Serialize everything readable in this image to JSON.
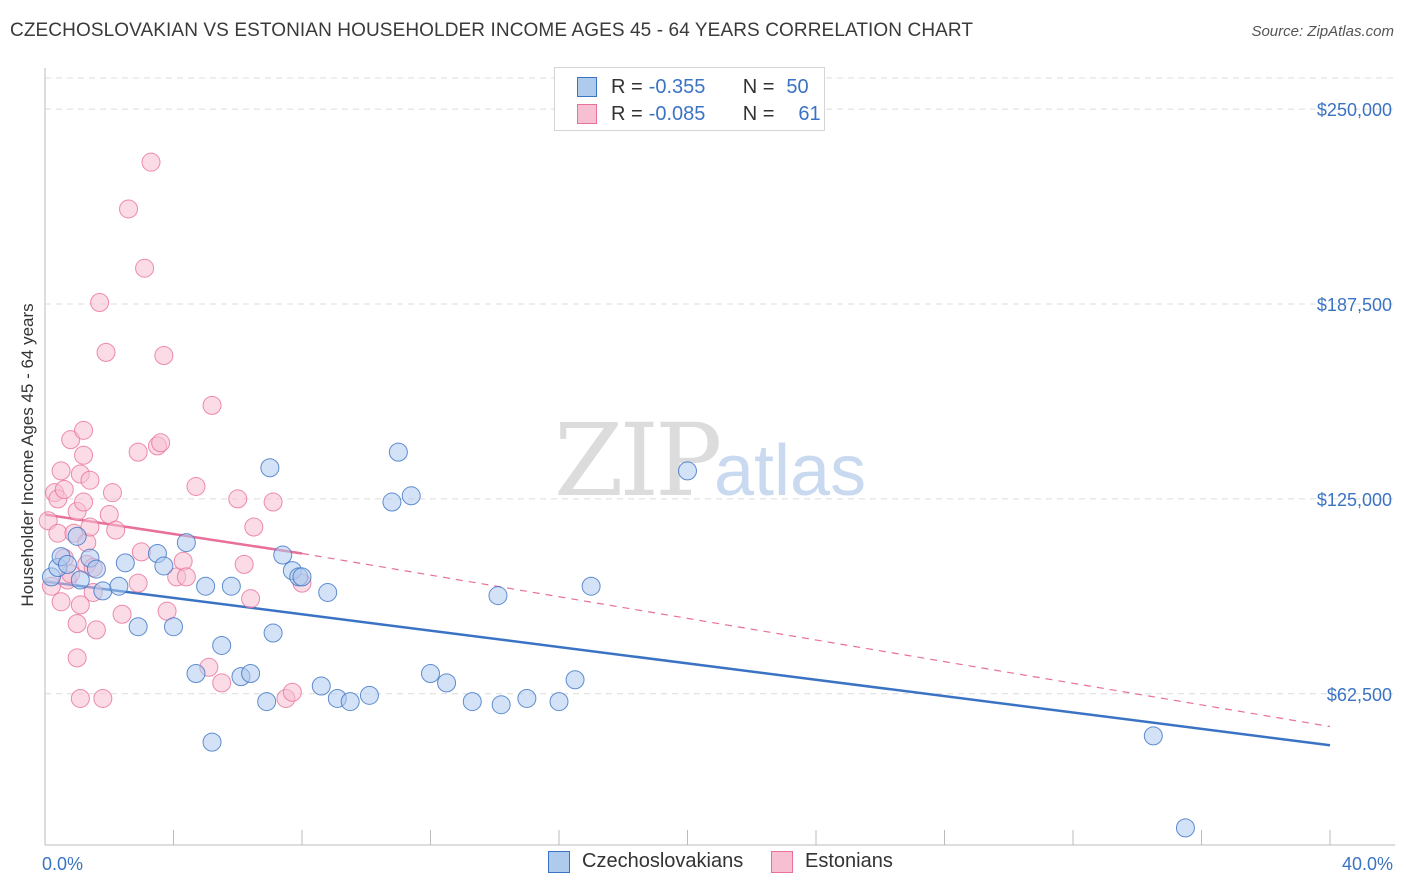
{
  "title": "CZECHOSLOVAKIAN VS ESTONIAN HOUSEHOLDER INCOME AGES 45 - 64 YEARS CORRELATION CHART",
  "source": "Source: ZipAtlas.com",
  "watermark": {
    "zip": "ZIP",
    "atlas": "atlas"
  },
  "colors": {
    "blue": "#3b73c4",
    "blue_fill": "#aecbee",
    "pink": "#e87099",
    "pink_fill": "#f7bfd2",
    "grid": "#dcdcdc"
  },
  "legend": {
    "rows": [
      {
        "r_label": "R =",
        "r_value": "-0.355",
        "n_label": "N =",
        "n_value": "50"
      },
      {
        "r_label": "R =",
        "r_value": "-0.085",
        "n_label": "N =",
        "n_value": "61"
      }
    ]
  },
  "bottom_legend": [
    "Czechoslovakians",
    "Estonians"
  ],
  "chart_data": {
    "type": "scatter",
    "title": "CZECHOSLOVAKIAN VS ESTONIAN HOUSEHOLDER INCOME AGES 45 - 64 YEARS CORRELATION CHART",
    "xlabel": "",
    "ylabel": "Householder Income Ages 45 - 64 years",
    "xlim": [
      0,
      40
    ],
    "ylim": [
      14000,
      260000
    ],
    "x_tick_labels": [
      "0.0%",
      "40.0%"
    ],
    "y_ticks": [
      62500,
      125000,
      187500,
      250000
    ],
    "y_tick_labels": [
      "$62,500",
      "$125,000",
      "$187,500",
      "$250,000"
    ],
    "series": [
      {
        "name": "Czechoslovakians",
        "r": -0.355,
        "n": 50,
        "trend": {
          "x": [
            0,
            40
          ],
          "y": [
            98500,
            46000
          ],
          "style": "solid"
        },
        "points": [
          [
            0.2,
            100000
          ],
          [
            0.4,
            103000
          ],
          [
            0.5,
            106500
          ],
          [
            0.7,
            104000
          ],
          [
            1.0,
            113000
          ],
          [
            1.1,
            99000
          ],
          [
            1.4,
            106000
          ],
          [
            1.6,
            102500
          ],
          [
            1.8,
            95500
          ],
          [
            2.3,
            97000
          ],
          [
            2.5,
            104500
          ],
          [
            2.9,
            84000
          ],
          [
            3.5,
            107500
          ],
          [
            3.7,
            103500
          ],
          [
            4.0,
            84000
          ],
          [
            4.4,
            111000
          ],
          [
            4.7,
            69000
          ],
          [
            5.0,
            97000
          ],
          [
            5.2,
            47000
          ],
          [
            5.5,
            78000
          ],
          [
            5.8,
            97000
          ],
          [
            6.1,
            68000
          ],
          [
            6.4,
            69000
          ],
          [
            6.9,
            60000
          ],
          [
            7.0,
            135000
          ],
          [
            7.1,
            82000
          ],
          [
            7.4,
            107000
          ],
          [
            7.7,
            102000
          ],
          [
            7.9,
            100000
          ],
          [
            8.0,
            100000
          ],
          [
            8.6,
            65000
          ],
          [
            8.8,
            95000
          ],
          [
            9.1,
            61000
          ],
          [
            9.5,
            60000
          ],
          [
            10.1,
            62000
          ],
          [
            10.8,
            124000
          ],
          [
            11.0,
            140000
          ],
          [
            11.4,
            126000
          ],
          [
            12.0,
            69000
          ],
          [
            12.5,
            66000
          ],
          [
            13.3,
            60000
          ],
          [
            14.1,
            94000
          ],
          [
            14.2,
            59000
          ],
          [
            15.0,
            61000
          ],
          [
            16.0,
            60000
          ],
          [
            16.5,
            67000
          ],
          [
            17.0,
            97000
          ],
          [
            20.0,
            134000
          ],
          [
            34.5,
            49000
          ],
          [
            35.5,
            19500
          ]
        ]
      },
      {
        "name": "Estonians",
        "r": -0.085,
        "n": 61,
        "trend": {
          "x": [
            0,
            8
          ],
          "y": [
            120000,
            107500
          ],
          "style": "solid",
          "extend": {
            "x": [
              8,
              40
            ],
            "y": [
              107500,
              52000
            ],
            "style": "dashed"
          }
        },
        "points": [
          [
            0.1,
            118000
          ],
          [
            0.2,
            97000
          ],
          [
            0.3,
            127000
          ],
          [
            0.4,
            125000
          ],
          [
            0.4,
            114000
          ],
          [
            0.5,
            134000
          ],
          [
            0.5,
            92000
          ],
          [
            0.6,
            128000
          ],
          [
            0.6,
            106000
          ],
          [
            0.7,
            99000
          ],
          [
            0.8,
            144000
          ],
          [
            0.8,
            101000
          ],
          [
            0.9,
            114000
          ],
          [
            1.0,
            121000
          ],
          [
            1.0,
            85000
          ],
          [
            1.0,
            74000
          ],
          [
            1.1,
            133000
          ],
          [
            1.1,
            91000
          ],
          [
            1.1,
            61000
          ],
          [
            1.2,
            139000
          ],
          [
            1.2,
            147000
          ],
          [
            1.2,
            124000
          ],
          [
            1.3,
            111000
          ],
          [
            1.3,
            104000
          ],
          [
            1.4,
            131000
          ],
          [
            1.4,
            116000
          ],
          [
            1.5,
            103000
          ],
          [
            1.5,
            95000
          ],
          [
            1.6,
            83000
          ],
          [
            1.7,
            188000
          ],
          [
            1.8,
            61000
          ],
          [
            1.9,
            172000
          ],
          [
            2.0,
            120000
          ],
          [
            2.1,
            127000
          ],
          [
            2.2,
            115000
          ],
          [
            2.4,
            88000
          ],
          [
            2.6,
            218000
          ],
          [
            2.9,
            140000
          ],
          [
            2.9,
            98000
          ],
          [
            3.0,
            108000
          ],
          [
            3.1,
            199000
          ],
          [
            3.3,
            233000
          ],
          [
            3.5,
            142000
          ],
          [
            3.6,
            143000
          ],
          [
            3.7,
            171000
          ],
          [
            3.8,
            89000
          ],
          [
            4.1,
            100000
          ],
          [
            4.3,
            105000
          ],
          [
            4.4,
            100000
          ],
          [
            4.7,
            129000
          ],
          [
            5.1,
            71000
          ],
          [
            5.2,
            155000
          ],
          [
            5.5,
            66000
          ],
          [
            6.0,
            125000
          ],
          [
            6.2,
            104000
          ],
          [
            6.4,
            93000
          ],
          [
            6.5,
            116000
          ],
          [
            7.1,
            124000
          ],
          [
            7.5,
            61000
          ],
          [
            7.7,
            63000
          ],
          [
            8.0,
            98000
          ]
        ]
      }
    ]
  }
}
